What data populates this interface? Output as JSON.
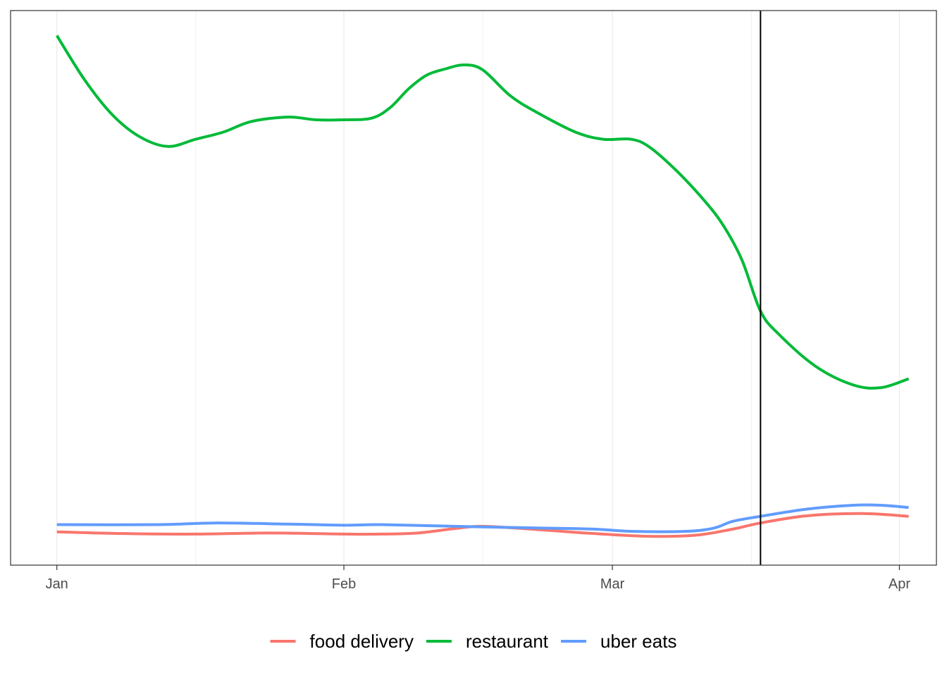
{
  "chart_data": {
    "type": "line",
    "title": "",
    "xlabel": "",
    "ylabel": "",
    "x_axis": {
      "type": "date",
      "ticks": [
        {
          "label": "Jan",
          "date": "2020-01-01"
        },
        {
          "label": "Feb",
          "date": "2020-02-01"
        },
        {
          "label": "Mar",
          "date": "2020-03-01"
        },
        {
          "label": "Apr",
          "date": "2020-04-01"
        }
      ],
      "minor_grid_dates": [
        "2020-01-16",
        "2020-02-16",
        "2020-03-16"
      ],
      "range": [
        "2019-12-27",
        "2020-04-05"
      ]
    },
    "y_axis": {
      "ticks_shown": false,
      "range": [
        0,
        100
      ]
    },
    "grid": true,
    "legend": {
      "position": "bottom"
    },
    "reference_line": {
      "date": "2020-03-17"
    },
    "series": [
      {
        "name": "food delivery",
        "color": "#F8766D",
        "points": [
          [
            "2020-01-01",
            6.0
          ],
          [
            "2020-01-08",
            5.7
          ],
          [
            "2020-01-16",
            5.6
          ],
          [
            "2020-01-24",
            5.8
          ],
          [
            "2020-02-01",
            5.6
          ],
          [
            "2020-02-05",
            5.6
          ],
          [
            "2020-02-09",
            5.8
          ],
          [
            "2020-02-13",
            6.6
          ],
          [
            "2020-02-16",
            7.0
          ],
          [
            "2020-02-22",
            6.4
          ],
          [
            "2020-02-28",
            5.7
          ],
          [
            "2020-03-05",
            5.2
          ],
          [
            "2020-03-10",
            5.4
          ],
          [
            "2020-03-14",
            6.5
          ],
          [
            "2020-03-17",
            7.6
          ],
          [
            "2020-03-22",
            8.9
          ],
          [
            "2020-03-28",
            9.3
          ],
          [
            "2020-04-02",
            8.8
          ]
        ]
      },
      {
        "name": "restaurant",
        "color": "#00BA38",
        "points": [
          [
            "2020-01-01",
            95.5
          ],
          [
            "2020-01-04",
            87.5
          ],
          [
            "2020-01-07",
            81.2
          ],
          [
            "2020-01-10",
            77.2
          ],
          [
            "2020-01-13",
            75.5
          ],
          [
            "2020-01-16",
            76.8
          ],
          [
            "2020-01-19",
            78.1
          ],
          [
            "2020-01-22",
            80.0
          ],
          [
            "2020-01-26",
            80.8
          ],
          [
            "2020-01-29",
            80.3
          ],
          [
            "2020-02-01",
            80.3
          ],
          [
            "2020-02-04",
            80.6
          ],
          [
            "2020-02-06",
            82.5
          ],
          [
            "2020-02-08",
            85.9
          ],
          [
            "2020-02-10",
            88.4
          ],
          [
            "2020-02-12",
            89.5
          ],
          [
            "2020-02-14",
            90.2
          ],
          [
            "2020-02-16",
            89.3
          ],
          [
            "2020-02-19",
            84.6
          ],
          [
            "2020-02-22",
            81.5
          ],
          [
            "2020-02-26",
            78.1
          ],
          [
            "2020-02-29",
            76.8
          ],
          [
            "2020-03-03",
            76.8
          ],
          [
            "2020-03-05",
            75.4
          ],
          [
            "2020-03-08",
            71.0
          ],
          [
            "2020-03-11",
            65.6
          ],
          [
            "2020-03-13",
            61.2
          ],
          [
            "2020-03-15",
            55.0
          ],
          [
            "2020-03-17",
            45.8
          ],
          [
            "2020-03-19",
            41.6
          ],
          [
            "2020-03-23",
            35.8
          ],
          [
            "2020-03-27",
            32.5
          ],
          [
            "2020-03-30",
            32.0
          ],
          [
            "2020-04-02",
            33.6
          ]
        ]
      },
      {
        "name": "uber eats",
        "color": "#619CFF",
        "points": [
          [
            "2020-01-01",
            7.3
          ],
          [
            "2020-01-12",
            7.3
          ],
          [
            "2020-01-18",
            7.6
          ],
          [
            "2020-01-26",
            7.4
          ],
          [
            "2020-02-01",
            7.2
          ],
          [
            "2020-02-05",
            7.3
          ],
          [
            "2020-02-13",
            7.0
          ],
          [
            "2020-02-16",
            6.9
          ],
          [
            "2020-02-22",
            6.7
          ],
          [
            "2020-02-28",
            6.5
          ],
          [
            "2020-03-03",
            6.1
          ],
          [
            "2020-03-09",
            6.1
          ],
          [
            "2020-03-12",
            6.7
          ],
          [
            "2020-03-14",
            7.9
          ],
          [
            "2020-03-17",
            8.8
          ],
          [
            "2020-03-22",
            10.1
          ],
          [
            "2020-03-27",
            10.8
          ],
          [
            "2020-03-30",
            10.8
          ],
          [
            "2020-04-02",
            10.4
          ]
        ]
      }
    ]
  }
}
